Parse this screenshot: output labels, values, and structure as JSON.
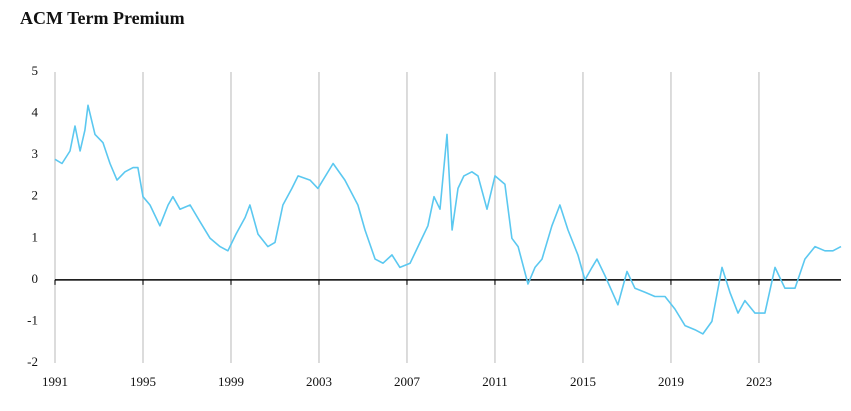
{
  "chart_data": {
    "type": "line",
    "title": "ACM Term Premium",
    "x": [
      1991.0,
      1991.32,
      1991.68,
      1991.91,
      1992.14,
      1992.36,
      1992.5,
      1992.82,
      1993.18,
      1993.5,
      1993.82,
      1994.18,
      1994.55,
      1994.77,
      1995.0,
      1995.32,
      1995.77,
      1996.14,
      1996.36,
      1996.68,
      1997.14,
      1997.59,
      1998.05,
      1998.5,
      1998.86,
      1999.23,
      1999.64,
      1999.86,
      2000.23,
      2000.68,
      2001.0,
      2001.36,
      2001.77,
      2002.05,
      2002.59,
      2002.95,
      2003.64,
      2004.18,
      2004.77,
      2005.09,
      2005.55,
      2005.91,
      2006.32,
      2006.68,
      2007.14,
      2007.59,
      2007.95,
      2008.23,
      2008.5,
      2008.82,
      2009.05,
      2009.32,
      2009.59,
      2009.95,
      2010.23,
      2010.64,
      2011.0,
      2011.45,
      2011.77,
      2012.05,
      2012.5,
      2012.82,
      2013.14,
      2013.59,
      2013.95,
      2014.32,
      2014.77,
      2015.09,
      2015.41,
      2015.64,
      2016.0,
      2016.59,
      2017.0,
      2017.36,
      2017.82,
      2018.27,
      2018.73,
      2019.18,
      2019.64,
      2020.09,
      2020.45,
      2020.86,
      2021.32,
      2021.68,
      2022.05,
      2022.36,
      2022.82,
      2023.27,
      2023.73,
      2024.18,
      2024.64,
      2025.09,
      2025.55,
      2026.0,
      2026.36,
      2026.73
    ],
    "series": [
      {
        "name": "ACM Term Premium",
        "color": "#5bc8f0",
        "values": [
          2.9,
          2.8,
          3.1,
          3.7,
          3.1,
          3.6,
          4.2,
          3.5,
          3.3,
          2.8,
          2.4,
          2.6,
          2.7,
          2.7,
          2.0,
          1.8,
          1.3,
          1.8,
          2.0,
          1.7,
          1.8,
          1.4,
          1.0,
          0.8,
          0.7,
          1.1,
          1.5,
          1.8,
          1.1,
          0.8,
          0.9,
          1.8,
          2.2,
          2.5,
          2.4,
          2.2,
          2.8,
          2.4,
          1.8,
          1.2,
          0.5,
          0.4,
          0.6,
          0.3,
          0.4,
          0.9,
          1.3,
          2.0,
          1.7,
          3.5,
          1.2,
          2.2,
          2.5,
          2.6,
          2.5,
          1.7,
          2.5,
          2.3,
          1.0,
          0.8,
          -0.1,
          0.3,
          0.5,
          1.3,
          1.8,
          1.2,
          0.6,
          0.0,
          0.3,
          0.5,
          0.1,
          -0.6,
          0.2,
          -0.2,
          -0.3,
          -0.4,
          -0.4,
          -0.7,
          -1.1,
          -1.2,
          -1.3,
          -1.0,
          0.3,
          -0.3,
          -0.8,
          -0.5,
          -0.8,
          -0.8,
          0.3,
          -0.2,
          -0.2,
          0.5,
          0.8,
          0.7,
          0.7,
          0.8
        ]
      }
    ],
    "xlim": [
      1991,
      2026.73
    ],
    "xticks": [
      1991,
      1995,
      1999,
      2003,
      2007,
      2011,
      2015,
      2019,
      2023
    ],
    "ylim": [
      -2,
      5
    ],
    "yticks": [
      -2,
      -1,
      0,
      1,
      2,
      3,
      4,
      5
    ]
  }
}
